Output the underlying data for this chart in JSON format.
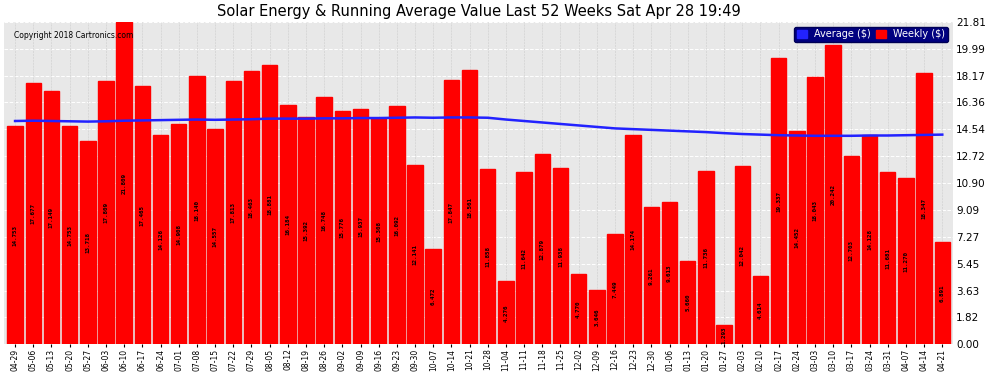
{
  "title": "Solar Energy & Running Average Value Last 52 Weeks Sat Apr 28 19:49",
  "copyright": "Copyright 2018 Cartronics.com",
  "bar_color": "#FF0000",
  "avg_line_color": "#2222FF",
  "background_color": "#FFFFFF",
  "plot_bg_color": "#E8E8E8",
  "grid_color": "#AAAAAA",
  "ylabel_right_values": [
    0.0,
    1.82,
    3.63,
    5.45,
    7.27,
    9.09,
    10.9,
    12.72,
    14.54,
    16.36,
    18.17,
    19.99,
    21.81
  ],
  "categories": [
    "04-29",
    "05-06",
    "05-13",
    "05-20",
    "05-27",
    "06-03",
    "06-10",
    "06-17",
    "06-24",
    "07-01",
    "07-08",
    "07-15",
    "07-22",
    "07-29",
    "08-05",
    "08-12",
    "08-19",
    "08-26",
    "09-02",
    "09-09",
    "09-16",
    "09-23",
    "09-30",
    "10-07",
    "10-14",
    "10-21",
    "10-28",
    "11-04",
    "11-11",
    "11-18",
    "11-25",
    "12-02",
    "12-09",
    "12-16",
    "12-23",
    "12-30",
    "01-06",
    "01-13",
    "01-20",
    "01-27",
    "02-03",
    "02-10",
    "02-17",
    "02-24",
    "03-03",
    "03-10",
    "03-17",
    "03-24",
    "03-31",
    "04-07",
    "04-14",
    "04-21"
  ],
  "weekly_values": [
    14.753,
    17.677,
    17.149,
    14.753,
    13.718,
    17.809,
    21.809,
    17.465,
    14.126,
    14.908,
    18.14,
    14.557,
    17.813,
    18.463,
    18.881,
    16.184,
    15.392,
    16.748,
    15.776,
    15.937,
    15.308,
    16.092,
    12.141,
    6.472,
    17.847,
    18.561,
    11.858,
    4.276,
    11.642,
    12.879,
    11.938,
    4.77,
    3.646,
    7.449,
    14.174,
    9.261,
    9.613,
    5.66,
    11.736,
    1.293,
    12.042,
    4.614,
    19.337,
    14.452,
    18.043,
    20.242,
    12.703,
    14.128,
    11.681,
    11.27,
    18.347,
    6.891
  ],
  "avg_line_values": [
    15.1,
    15.12,
    15.1,
    15.08,
    15.06,
    15.08,
    15.12,
    15.14,
    15.16,
    15.18,
    15.2,
    15.18,
    15.2,
    15.22,
    15.26,
    15.26,
    15.26,
    15.28,
    15.28,
    15.3,
    15.3,
    15.32,
    15.34,
    15.32,
    15.34,
    15.34,
    15.32,
    15.2,
    15.1,
    15.0,
    14.9,
    14.8,
    14.7,
    14.6,
    14.55,
    14.5,
    14.45,
    14.4,
    14.35,
    14.28,
    14.22,
    14.18,
    14.14,
    14.12,
    14.1,
    14.1,
    14.1,
    14.12,
    14.12,
    14.14,
    14.16,
    14.18
  ],
  "legend_avg_label": "Average ($)",
  "legend_weekly_label": "Weekly ($)"
}
